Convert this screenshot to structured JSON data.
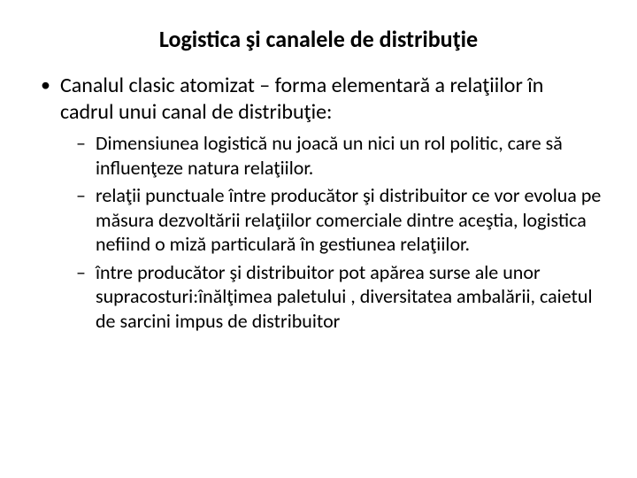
{
  "title": "Logistica şi canalele de distribuţie",
  "bullets": {
    "main": "Canalul clasic atomizat – forma elementară a relaţiilor în cadrul unui canal de distribuţie:",
    "sub": [
      " Dimensiunea logistică nu joacă un nici un rol politic, care să influenţeze natura relaţiilor.",
      "relaţii punctuale între producător şi distribuitor ce vor evolua pe măsura dezvoltării relaţiilor comerciale dintre aceştia, logistica nefiind o miză particulară în gestiunea relaţiilor.",
      "între producător şi distribuitor pot  apărea surse ale unor supracosturi:înălţimea paletului , diversitatea ambalării, caietul de sarcini impus de distribuitor"
    ]
  },
  "style": {
    "background_color": "#ffffff",
    "text_color": "#000000",
    "title_fontsize": 26,
    "title_weight": "bold",
    "body_fontsize_l1": 24,
    "body_fontsize_l2": 22,
    "font_family": "Calibri"
  }
}
